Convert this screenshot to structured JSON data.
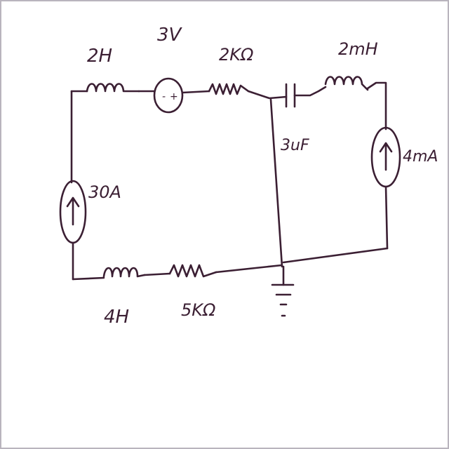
{
  "colors": {
    "ink": "#3b1f33",
    "paper": "#ffffff",
    "border": "#b9b4bd"
  },
  "components": {
    "inductor_top_left": "2H",
    "voltage_source": "3V",
    "resistor_top": "2KΩ",
    "inductor_top_right": "2mH",
    "capacitor": "3uF",
    "current_source_right": "4mA",
    "current_source_left": "30A",
    "inductor_bottom": "4H",
    "resistor_bottom": "5KΩ"
  },
  "symbols": {
    "voltage_source_minus": "-",
    "voltage_source_plus": "+",
    "ground": "ground-icon",
    "arrow": "arrow-up-icon"
  }
}
